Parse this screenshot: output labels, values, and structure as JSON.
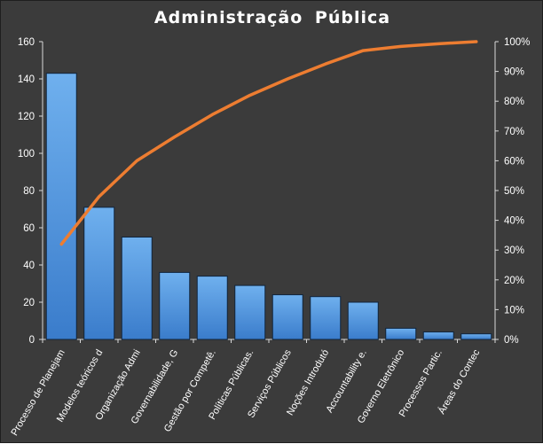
{
  "chart_data": {
    "type": "bar",
    "title": "Administração  Pública",
    "categories": [
      "Processo de Planejam",
      "Modelos teóricos d",
      "Organização Admi",
      "Governabilidade, G",
      "Gestão por Competê.",
      "Políticas Públicas.",
      "Serviços Públicos",
      "Noções Introdutó",
      "Accountability e.",
      "Governo Eletrônico",
      "Processos Partic.",
      "Áreas do Contec"
    ],
    "series": [
      {
        "type": "bar",
        "values": [
          143,
          71,
          55,
          36,
          34,
          29,
          24,
          23,
          20,
          6,
          4,
          3
        ]
      },
      {
        "type": "line",
        "axis": "right",
        "values": [
          32,
          48,
          60,
          68,
          75.5,
          82,
          87.5,
          92.5,
          97,
          98.4,
          99.3,
          100
        ]
      }
    ],
    "y_left": {
      "min": 0,
      "max": 160,
      "ticks": [
        0,
        20,
        40,
        60,
        80,
        100,
        120,
        140,
        160
      ]
    },
    "y_right": {
      "min": 0,
      "max": 100,
      "ticks": [
        "0%",
        "10%",
        "20%",
        "30%",
        "40%",
        "50%",
        "60%",
        "70%",
        "80%",
        "90%",
        "100%"
      ]
    },
    "grid": false,
    "legend": "none",
    "colors": {
      "background": "#3b3b3b",
      "bar": "#4a8fd8",
      "line": "#ed7d31",
      "text": "#ffffff"
    }
  }
}
